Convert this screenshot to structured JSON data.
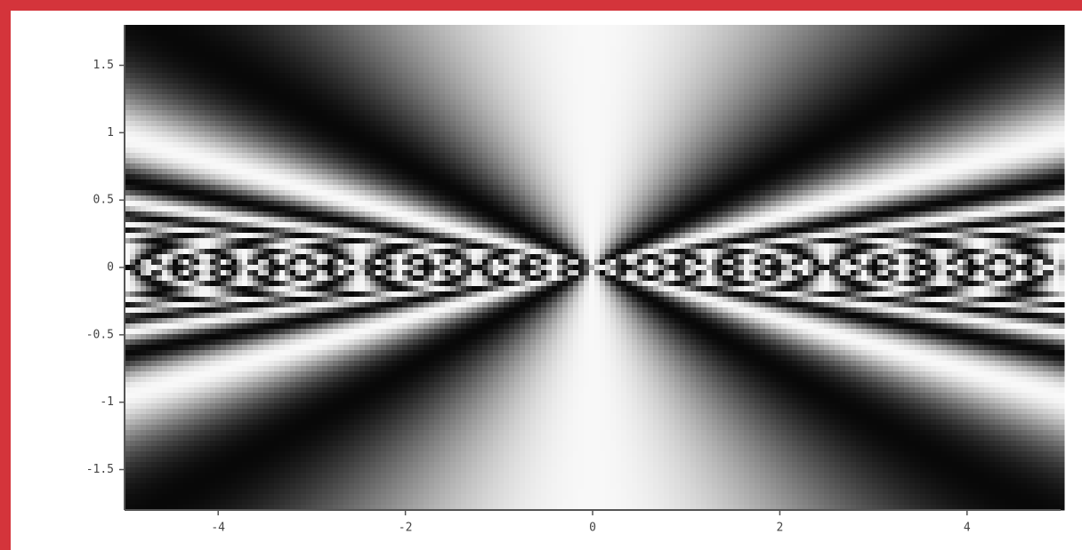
{
  "chart_data": {
    "type": "density",
    "xlim": [
      -5,
      5
    ],
    "ylim": [
      -1.8,
      1.8
    ],
    "xticks": [
      -4,
      -2,
      0,
      2,
      4
    ],
    "yticks": [
      -1.5,
      -1,
      -0.5,
      0,
      0.5,
      1,
      1.5
    ]
  }
}
